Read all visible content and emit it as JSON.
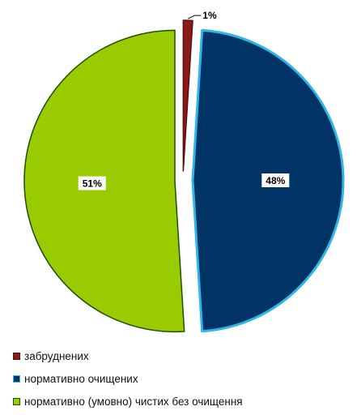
{
  "chart_data": {
    "type": "pie",
    "title": "",
    "exploded": true,
    "slices": [
      {
        "label": "забруднених",
        "value": 1,
        "data_label": "1%",
        "color": "#8B1A1A",
        "outline": "#5a0e0e"
      },
      {
        "label": "нормативно очищених",
        "value": 48,
        "data_label": "48%",
        "color": "#003366",
        "outline": "#2fb5e8"
      },
      {
        "label": "нормативно (умовно) чистих без очищення",
        "value": 51,
        "data_label": "51%",
        "color": "#99CC00",
        "outline": "#1f4d00"
      }
    ],
    "legend_position": "bottom-left"
  }
}
